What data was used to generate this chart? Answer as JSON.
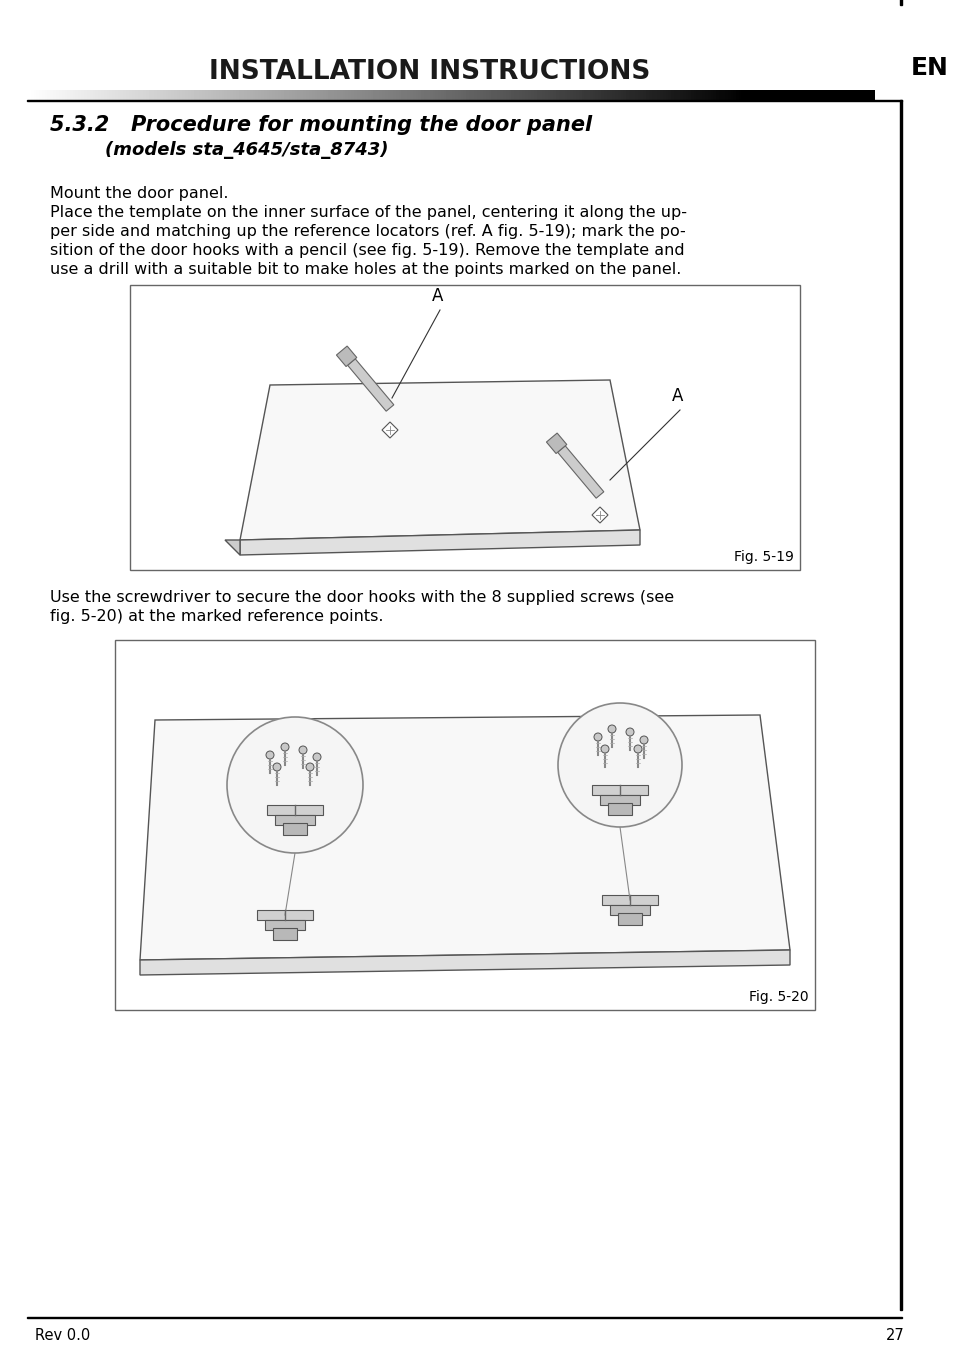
{
  "bg_color": "#ffffff",
  "header_title": "INSTALLATION INSTRUCTIONS",
  "header_en": "EN",
  "section_title": "5.3.2   Procedure for mounting the door panel",
  "section_subtitle": "(models sta_4645/sta_8743)",
  "para1": "Mount the door panel.",
  "para2_lines": [
    "Place the template on the inner surface of the panel, centering it along the up-",
    "per side and matching up the reference locators (ref. A fig. 5-19); mark the po-",
    "sition of the door hooks with a pencil (see fig. 5-19). Remove the template and",
    "use a drill with a suitable bit to make holes at the points marked on the panel."
  ],
  "para3_lines": [
    "Use the screwdriver to secure the door hooks with the 8 supplied screws (see",
    "fig. 5-20) at the marked reference points."
  ],
  "fig1_label": "Fig. 5-19",
  "fig2_label": "Fig. 5-20",
  "footer_rev": "Rev 0.0",
  "footer_page": "27"
}
